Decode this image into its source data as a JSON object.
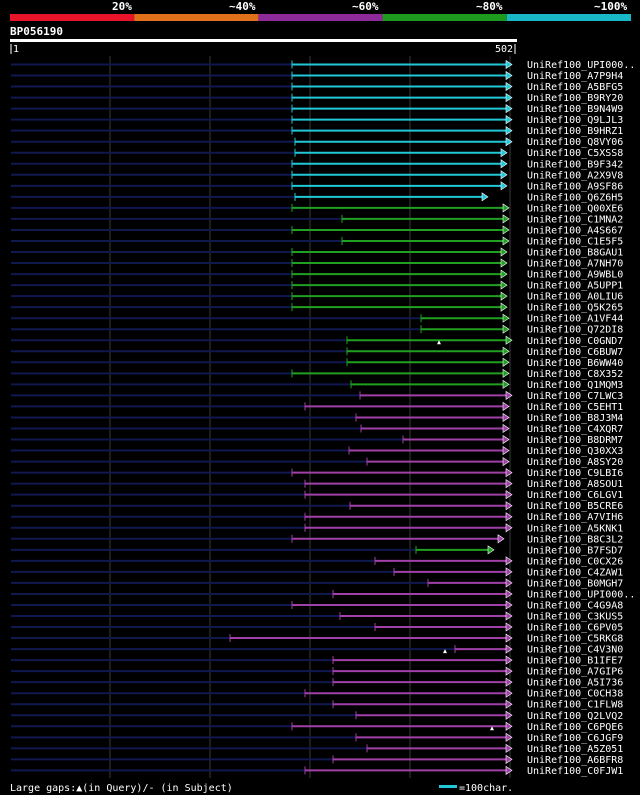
{
  "legend": {
    "labels": [
      "20%",
      "~40%",
      "~60%",
      "~80%",
      "~100%"
    ],
    "colors": [
      "#e8152a",
      "#e0701a",
      "#8e2a9a",
      "#1e9a1e",
      "#18b8c8"
    ]
  },
  "query": {
    "id": "BP056190",
    "start_label": "1",
    "end_label": "502",
    "length": 502
  },
  "palette": {
    "cyan": "#20c8d8",
    "green": "#20a020",
    "purple": "#a040a8",
    "prefix": "#101850",
    "grid": "#3a3a3a",
    "subject_gap": "#101010"
  },
  "hits": [
    {
      "id": "UniRef100_UPI000..",
      "color": "cyan",
      "start": 282,
      "end": 502
    },
    {
      "id": "UniRef100_A7P9H4",
      "color": "cyan",
      "start": 282,
      "end": 502
    },
    {
      "id": "UniRef100_A5BFG5",
      "color": "cyan",
      "start": 282,
      "end": 502
    },
    {
      "id": "UniRef100_B9RY20",
      "color": "cyan",
      "start": 282,
      "end": 502
    },
    {
      "id": "UniRef100_B9N4W9",
      "color": "cyan",
      "start": 282,
      "end": 502
    },
    {
      "id": "UniRef100_Q9LJL3",
      "color": "cyan",
      "start": 282,
      "end": 502
    },
    {
      "id": "UniRef100_B9HRZ1",
      "color": "cyan",
      "start": 282,
      "end": 502
    },
    {
      "id": "UniRef100_Q8VY06",
      "color": "cyan",
      "start": 285,
      "end": 502
    },
    {
      "id": "UniRef100_C5XSS8",
      "color": "cyan",
      "start": 285,
      "end": 497
    },
    {
      "id": "UniRef100_B9F342",
      "color": "cyan",
      "start": 282,
      "end": 497
    },
    {
      "id": "UniRef100_A2X9V8",
      "color": "cyan",
      "start": 282,
      "end": 497
    },
    {
      "id": "UniRef100_A9SF86",
      "color": "cyan",
      "start": 282,
      "end": 497
    },
    {
      "id": "UniRef100_Q6Z6H5",
      "color": "cyan",
      "start": 285,
      "end": 478
    },
    {
      "id": "UniRef100_Q00XE6",
      "color": "green",
      "start": 282,
      "end": 499
    },
    {
      "id": "UniRef100_C1MNA2",
      "color": "green",
      "start": 332,
      "end": 499
    },
    {
      "id": "UniRef100_A4S667",
      "color": "green",
      "start": 282,
      "end": 499
    },
    {
      "id": "UniRef100_C1E5F5",
      "color": "green",
      "start": 332,
      "end": 499
    },
    {
      "id": "UniRef100_B8GAU1",
      "color": "green",
      "start": 282,
      "end": 497
    },
    {
      "id": "UniRef100_A7NH70",
      "color": "green",
      "start": 282,
      "end": 497
    },
    {
      "id": "UniRef100_A9WBL0",
      "color": "green",
      "start": 282,
      "end": 497
    },
    {
      "id": "UniRef100_A5UPP1",
      "color": "green",
      "start": 282,
      "end": 497
    },
    {
      "id": "UniRef100_A0LIU6",
      "color": "green",
      "start": 282,
      "end": 497
    },
    {
      "id": "UniRef100_Q5K265",
      "color": "green",
      "start": 282,
      "end": 497
    },
    {
      "id": "UniRef100_A1VF44",
      "color": "green",
      "start": 411,
      "end": 499
    },
    {
      "id": "UniRef100_Q72DI8",
      "color": "green",
      "start": 411,
      "end": 499
    },
    {
      "id": "UniRef100_C0GND7",
      "color": "green",
      "start": 337,
      "end": 502
    },
    {
      "id": "UniRef100_C6BUW7",
      "color": "green",
      "start": 337,
      "end": 499
    },
    {
      "id": "UniRef100_B6WW40",
      "color": "green",
      "start": 337,
      "end": 499
    },
    {
      "id": "UniRef100_C8X352",
      "color": "green",
      "start": 282,
      "end": 499
    },
    {
      "id": "UniRef100_Q1MQM3",
      "color": "green",
      "start": 341,
      "end": 499
    },
    {
      "id": "UniRef100_C7LWC3",
      "color": "purple",
      "start": 350,
      "end": 502
    },
    {
      "id": "UniRef100_C5EHT1",
      "color": "purple",
      "start": 295,
      "end": 499
    },
    {
      "id": "UniRef100_B8J3M4",
      "color": "purple",
      "start": 346,
      "end": 499
    },
    {
      "id": "UniRef100_C4XQR7",
      "color": "purple",
      "start": 351,
      "end": 499
    },
    {
      "id": "UniRef100_B8DRM7",
      "color": "purple",
      "start": 393,
      "end": 499
    },
    {
      "id": "UniRef100_Q30XX3",
      "color": "purple",
      "start": 339,
      "end": 499
    },
    {
      "id": "UniRef100_A8SY20",
      "color": "purple",
      "start": 357,
      "end": 499
    },
    {
      "id": "UniRef100_C9LBI6",
      "color": "purple",
      "start": 282,
      "end": 502
    },
    {
      "id": "UniRef100_A8SOU1",
      "color": "purple",
      "start": 295,
      "end": 502
    },
    {
      "id": "UniRef100_C6LGV1",
      "color": "purple",
      "start": 295,
      "end": 502
    },
    {
      "id": "UniRef100_B5CRE6",
      "color": "purple",
      "start": 340,
      "end": 502
    },
    {
      "id": "UniRef100_A7VIH6",
      "color": "purple",
      "start": 295,
      "end": 502
    },
    {
      "id": "UniRef100_A5KNK1",
      "color": "purple",
      "start": 295,
      "end": 502
    },
    {
      "id": "UniRef100_B8C3L2",
      "color": "purple",
      "start": 282,
      "end": 494
    },
    {
      "id": "UniRef100_B7FSD7",
      "color": "green",
      "start": 406,
      "end": 484
    },
    {
      "id": "UniRef100_C0CX26",
      "color": "purple",
      "start": 365,
      "end": 502
    },
    {
      "id": "UniRef100_C4ZAW1",
      "color": "purple",
      "start": 384,
      "end": 502
    },
    {
      "id": "UniRef100_B0MGH7",
      "color": "purple",
      "start": 418,
      "end": 502
    },
    {
      "id": "UniRef100_UPI000..",
      "color": "purple",
      "start": 323,
      "end": 502
    },
    {
      "id": "UniRef100_C4G9A8",
      "color": "purple",
      "start": 282,
      "end": 502
    },
    {
      "id": "UniRef100_C3KUS5",
      "color": "purple",
      "start": 330,
      "end": 502
    },
    {
      "id": "UniRef100_C6PV05",
      "color": "purple",
      "start": 365,
      "end": 502
    },
    {
      "id": "UniRef100_C5RKG8",
      "color": "purple",
      "start": 220,
      "end": 502
    },
    {
      "id": "UniRef100_C4V3N0",
      "color": "purple",
      "start": 445,
      "end": 502
    },
    {
      "id": "UniRef100_B1IFE7",
      "color": "purple",
      "start": 323,
      "end": 502
    },
    {
      "id": "UniRef100_A7GIP6",
      "color": "purple",
      "start": 323,
      "end": 502
    },
    {
      "id": "UniRef100_A5I736",
      "color": "purple",
      "start": 323,
      "end": 502
    },
    {
      "id": "UniRef100_C0CH38",
      "color": "purple",
      "start": 295,
      "end": 502
    },
    {
      "id": "UniRef100_C1FLW8",
      "color": "purple",
      "start": 323,
      "end": 502
    },
    {
      "id": "UniRef100_Q2LVQ2",
      "color": "purple",
      "start": 346,
      "end": 502
    },
    {
      "id": "UniRef100_C6PQE6",
      "color": "purple",
      "start": 282,
      "end": 502
    },
    {
      "id": "UniRef100_C6JGF9",
      "color": "purple",
      "start": 346,
      "end": 502
    },
    {
      "id": "UniRef100_A5Z051",
      "color": "purple",
      "start": 357,
      "end": 502
    },
    {
      "id": "UniRef100_A6BFR8",
      "color": "purple",
      "start": 323,
      "end": 502
    },
    {
      "id": "UniRef100_C0FJW1",
      "color": "purple",
      "start": 295,
      "end": 502
    }
  ],
  "footer": {
    "gaps_text": "Large gaps:▲(in Query)/- (in Subject)",
    "scale_text": "=100char."
  }
}
